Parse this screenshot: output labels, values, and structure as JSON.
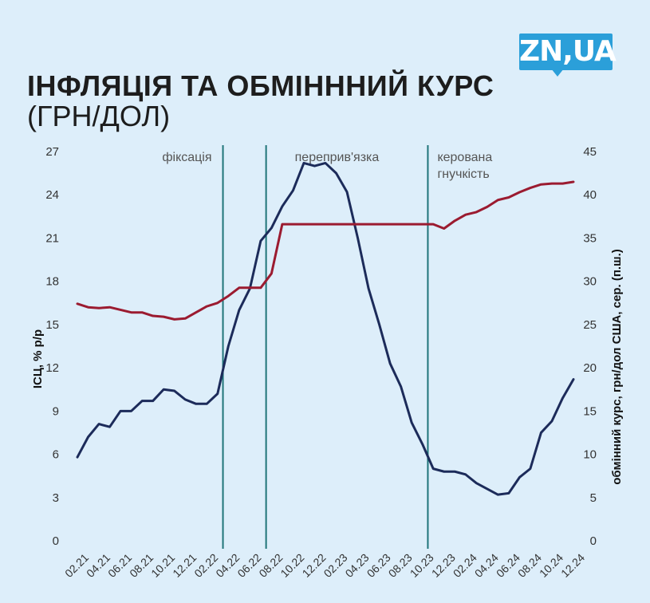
{
  "header": {
    "title": "ІНФЛЯЦІЯ ТА ОБМІНННИЙ КУРС",
    "subtitle": "(ГРН/ДОЛ)",
    "logo_text": "ZN,UA"
  },
  "chart_data": {
    "type": "line",
    "x": [
      "02.21",
      "03.21",
      "04.21",
      "05.21",
      "06.21",
      "07.21",
      "08.21",
      "09.21",
      "10.21",
      "11.21",
      "12.21",
      "01.22",
      "02.22",
      "03.22",
      "04.22",
      "05.22",
      "06.22",
      "07.22",
      "08.22",
      "09.22",
      "10.22",
      "11.22",
      "12.22",
      "01.23",
      "02.23",
      "03.23",
      "04.23",
      "05.23",
      "06.23",
      "07.23",
      "08.23",
      "09.23",
      "10.23",
      "11.23",
      "12.23",
      "01.24",
      "02.24",
      "03.24",
      "04.24",
      "05.24",
      "06.24",
      "07.24",
      "08.24",
      "09.24",
      "10.24",
      "11.24",
      "12.24"
    ],
    "x_tick_labels": [
      "02.21",
      "04.21",
      "06.21",
      "08.21",
      "10.21",
      "12.21",
      "02.22",
      "04.22",
      "06.22",
      "08.22",
      "10.22",
      "12.22",
      "02.23",
      "04.23",
      "06.23",
      "08.23",
      "10.23",
      "12.23",
      "02.24",
      "04.24",
      "06.24",
      "08.24",
      "10.24",
      "12.24"
    ],
    "series": [
      {
        "axis": "left",
        "color": "#1c2b5a",
        "values": [
          5.8,
          7.2,
          8.1,
          7.9,
          9.0,
          9.0,
          9.7,
          9.7,
          10.5,
          10.4,
          9.8,
          9.5,
          9.5,
          10.2,
          13.5,
          16.0,
          17.5,
          20.8,
          21.7,
          23.2,
          24.3,
          26.2,
          26.0,
          26.2,
          25.5,
          24.2,
          21.0,
          17.5,
          15.0,
          12.3,
          10.7,
          8.2,
          6.7,
          5.0,
          4.8,
          4.8,
          4.6,
          4.0,
          3.6,
          3.2,
          3.3,
          4.4,
          5.0,
          7.5,
          8.3,
          9.9,
          11.2
        ]
      },
      {
        "axis": "right",
        "color": "#9b1b30",
        "values": [
          27.4,
          27.0,
          26.9,
          27.0,
          26.7,
          26.4,
          26.4,
          26.0,
          25.9,
          25.6,
          25.7,
          26.4,
          27.1,
          27.5,
          28.3,
          29.25,
          29.25,
          29.25,
          30.9,
          36.6,
          36.6,
          36.6,
          36.6,
          36.6,
          36.6,
          36.6,
          36.6,
          36.6,
          36.6,
          36.6,
          36.6,
          36.6,
          36.6,
          36.6,
          36.1,
          37.0,
          37.7,
          38.0,
          38.6,
          39.4,
          39.7,
          40.3,
          40.8,
          41.2,
          41.3,
          41.3,
          41.5
        ]
      }
    ],
    "left_axis": {
      "label": "ІСЦ, % р/р",
      "range": [
        0,
        27
      ],
      "ticks": [
        "0",
        "3",
        "6",
        "9",
        "12",
        "15",
        "18",
        "21",
        "24",
        "27"
      ]
    },
    "right_axis": {
      "label": "обмінний курс, грн/дол США, сер. (п.ш.)",
      "range": [
        0,
        45
      ],
      "ticks": [
        "0",
        "5",
        "10",
        "15",
        "20",
        "25",
        "30",
        "35",
        "40",
        "45"
      ]
    },
    "periods": [
      {
        "label": "фіксація",
        "divider_after": "03.22"
      },
      {
        "label": "переприв'язка",
        "divider_after": "07.22"
      },
      {
        "label": "керована",
        "label2": "гнучкість",
        "divider_after": "10.23"
      }
    ],
    "divider_color": "#1f7479",
    "grid": false
  }
}
